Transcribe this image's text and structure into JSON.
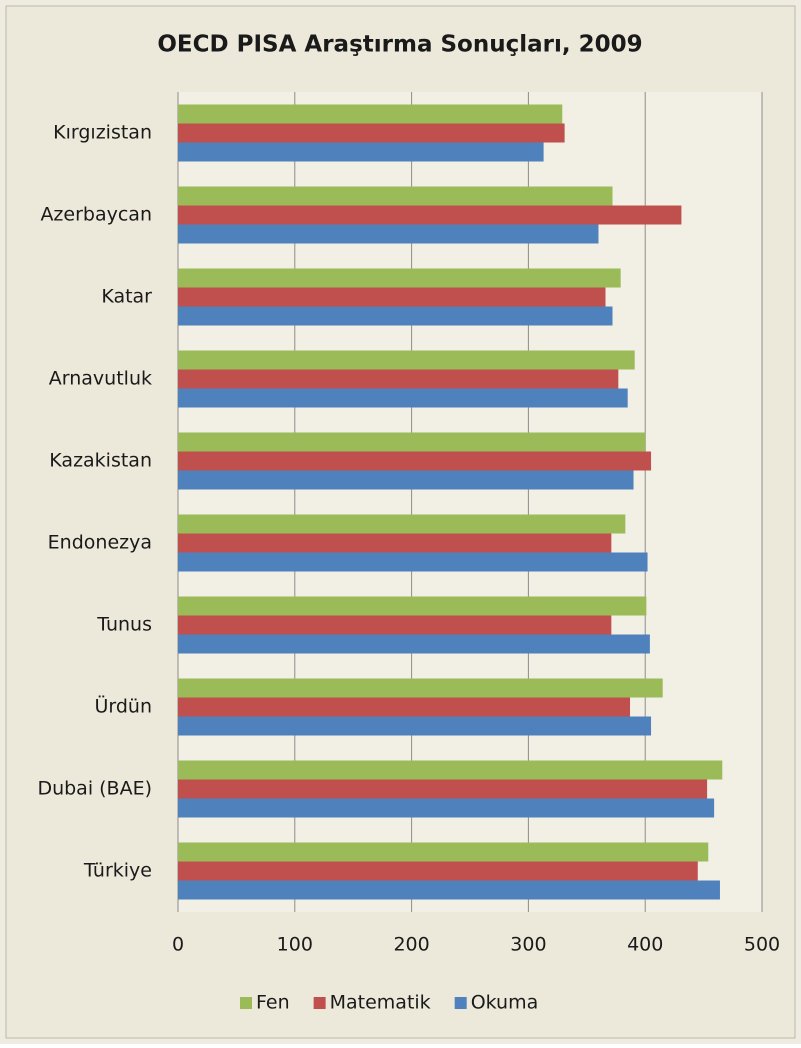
{
  "chart_data": {
    "type": "bar",
    "orientation": "horizontal",
    "title": "OECD PISA Araştırma Sonuçları, 2009",
    "categories": [
      "Kırgızistan",
      "Azerbaycan",
      "Katar",
      "Arnavutluk",
      "Kazakistan",
      "Endonezya",
      "Tunus",
      "Ürdün",
      "Dubai (BAE)",
      "Türkiye"
    ],
    "series": [
      {
        "name": "Fen",
        "color": "#9bbb59",
        "values": [
          329,
          372,
          379,
          391,
          400,
          383,
          401,
          415,
          466,
          454
        ]
      },
      {
        "name": "Matematik",
        "color": "#c0504d",
        "values": [
          331,
          431,
          366,
          377,
          405,
          371,
          371,
          387,
          453,
          445
        ]
      },
      {
        "name": "Okuma",
        "color": "#4f81bd",
        "values": [
          313,
          360,
          372,
          385,
          390,
          402,
          404,
          405,
          459,
          464
        ]
      }
    ],
    "xlim": [
      0,
      500
    ],
    "xticks": [
      0,
      100,
      200,
      300,
      400,
      500
    ],
    "grid": true,
    "legend": "bottom"
  }
}
